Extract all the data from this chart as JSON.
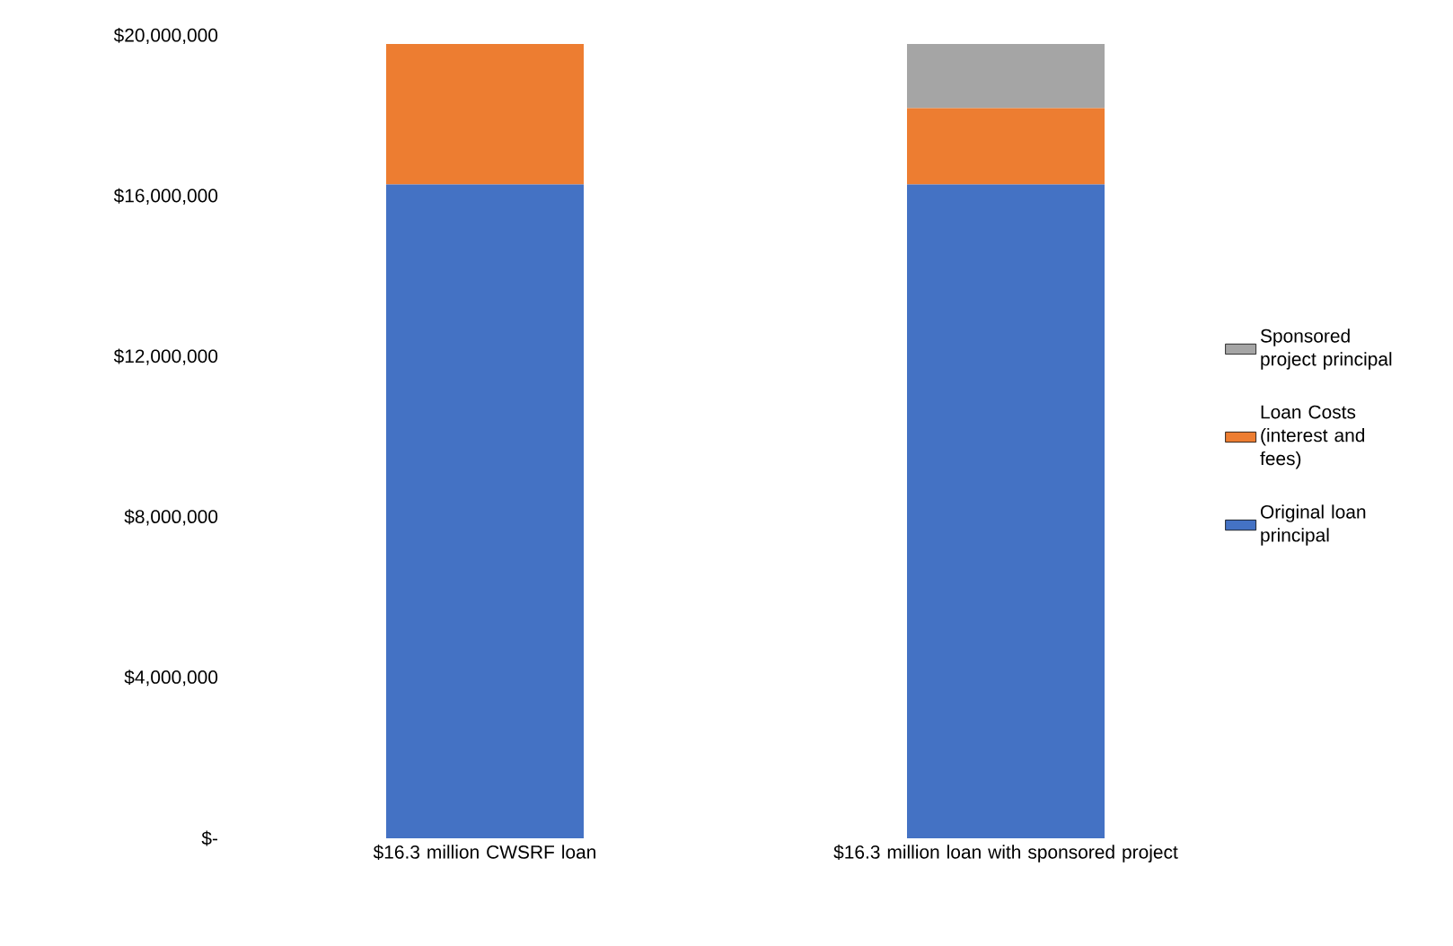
{
  "chart_data": {
    "type": "bar",
    "stacked": true,
    "categories": [
      "$16.3 million CWSRF loan",
      "$16.3 million loan with sponsored project"
    ],
    "series": [
      {
        "name": "Original loan principal",
        "color": "#4472c4",
        "values": [
          16300000,
          16300000
        ]
      },
      {
        "name": "Loan Costs (interest and fees)",
        "color": "#ed7d31",
        "values": [
          3500000,
          1900000
        ]
      },
      {
        "name": "Sponsored project principal",
        "color": "#a5a5a5",
        "values": [
          0,
          1600000
        ]
      }
    ],
    "ylim": [
      0,
      20000000
    ],
    "yticks": [
      {
        "value": 0,
        "label": "$-"
      },
      {
        "value": 4000000,
        "label": "$4,000,000"
      },
      {
        "value": 8000000,
        "label": "$8,000,000"
      },
      {
        "value": 12000000,
        "label": "$12,000,000"
      },
      {
        "value": 16000000,
        "label": "$16,000,000"
      },
      {
        "value": 20000000,
        "label": "$20,000,000"
      }
    ],
    "grid": false,
    "legend": "right"
  }
}
